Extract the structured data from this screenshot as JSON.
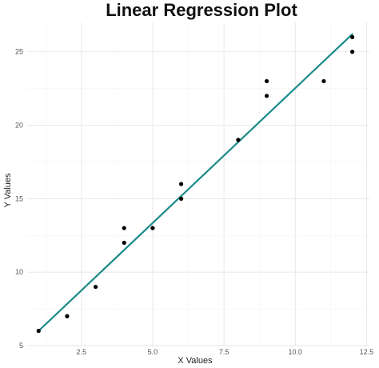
{
  "chart_data": {
    "type": "scatter",
    "title": "Linear Regression Plot",
    "xlabel": "X Values",
    "ylabel": "Y Values",
    "xlim": [
      0.6,
      12.6
    ],
    "ylim": [
      5,
      27
    ],
    "x_ticks": [
      2.5,
      5.0,
      7.5,
      10.0,
      12.5
    ],
    "x_tick_labels": [
      "2.5",
      "5.0",
      "7.5",
      "10.0",
      "12.5"
    ],
    "y_ticks": [
      5,
      10,
      15,
      20,
      25
    ],
    "y_tick_labels": [
      "5",
      "10",
      "15",
      "20",
      "25"
    ],
    "grid": true,
    "points": [
      {
        "x": 1,
        "y": 6
      },
      {
        "x": 2,
        "y": 7
      },
      {
        "x": 3,
        "y": 9
      },
      {
        "x": 4,
        "y": 12
      },
      {
        "x": 4,
        "y": 13
      },
      {
        "x": 5,
        "y": 13
      },
      {
        "x": 6,
        "y": 15
      },
      {
        "x": 6,
        "y": 16
      },
      {
        "x": 8,
        "y": 19
      },
      {
        "x": 9,
        "y": 22
      },
      {
        "x": 9,
        "y": 23
      },
      {
        "x": 11,
        "y": 23
      },
      {
        "x": 12,
        "y": 25
      },
      {
        "x": 12,
        "y": 26
      }
    ],
    "regression_line": {
      "x": [
        1,
        12
      ],
      "y": [
        6.0,
        26.2
      ]
    },
    "colors": {
      "points": "#000000",
      "line": "#1a8a8a"
    }
  }
}
